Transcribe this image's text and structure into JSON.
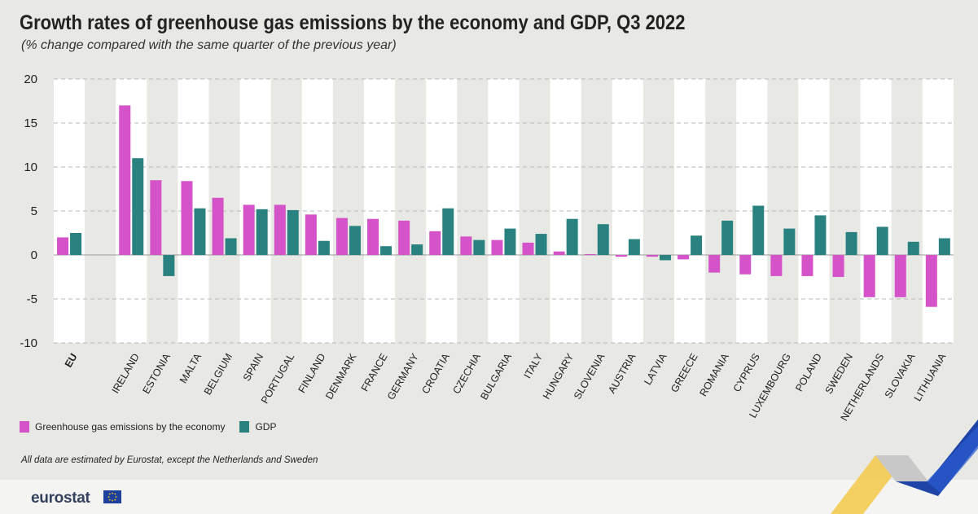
{
  "title": "Growth rates of greenhouse gas emissions by the economy and GDP, Q3 2022",
  "subtitle": "(% change compared with the same quarter of the previous year)",
  "note": "All data are estimated by Eurostat, except the Netherlands and Sweden",
  "logo": "eurostat",
  "colors": {
    "emissions": "#d453c9",
    "gdp": "#2a8280"
  },
  "chart_data": {
    "type": "bar",
    "title": "Growth rates of greenhouse gas emissions by the economy and GDP, Q3 2022",
    "ylim": [
      -10,
      20
    ],
    "yticks": [
      20,
      15,
      10,
      5,
      0,
      -5,
      -10
    ],
    "categories": [
      "EU",
      "",
      "IRELAND",
      "ESTONIA",
      "MALTA",
      "BELGIUM",
      "SPAIN",
      "PORTUGAL",
      "FINLAND",
      "DENMARK",
      "FRANCE",
      "GERMANY",
      "CROATIA",
      "CZECHIA",
      "BULGARIA",
      "ITALY",
      "HUNGARY",
      "SLOVENIA",
      "AUSTRIA",
      "LATVIA",
      "GREECE",
      "ROMANIA",
      "CYPRUS",
      "LUXEMBOURG",
      "POLAND",
      "SWEDEN",
      "NETHERLANDS",
      "SLOVAKIA",
      "LITHUANIA"
    ],
    "series": [
      {
        "name": "Greenhouse gas emissions by the economy",
        "values": [
          2.0,
          null,
          17.0,
          8.5,
          8.4,
          6.5,
          5.7,
          5.7,
          4.6,
          4.2,
          4.1,
          3.9,
          2.7,
          2.1,
          1.7,
          1.4,
          0.4,
          0.1,
          -0.2,
          -0.2,
          -0.5,
          -2.0,
          -2.2,
          -2.4,
          -2.4,
          -2.5,
          -4.8,
          -4.8,
          -5.9
        ]
      },
      {
        "name": "GDP",
        "values": [
          2.5,
          null,
          11.0,
          -2.4,
          5.3,
          1.9,
          5.2,
          5.1,
          1.6,
          3.3,
          1.0,
          1.2,
          5.3,
          1.7,
          3.0,
          2.4,
          4.1,
          3.5,
          1.8,
          -0.6,
          2.2,
          3.9,
          5.6,
          3.0,
          4.5,
          2.6,
          3.2,
          1.5,
          1.9
        ]
      }
    ],
    "legend": [
      "Greenhouse gas emissions by the economy",
      "GDP"
    ],
    "legend_position": "bottom-left",
    "grid": true
  }
}
